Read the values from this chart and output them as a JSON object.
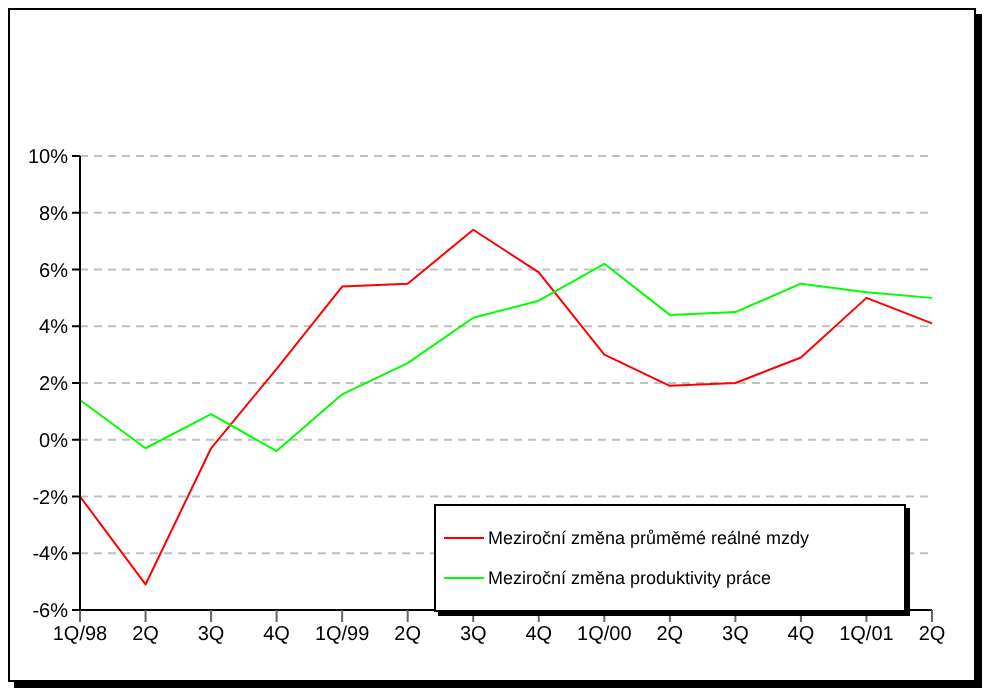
{
  "chart_data": {
    "type": "line",
    "categories": [
      "1Q/98",
      "2Q",
      "3Q",
      "4Q",
      "1Q/99",
      "2Q",
      "3Q",
      "4Q",
      "1Q/00",
      "2Q",
      "3Q",
      "4Q",
      "1Q/01",
      "2Q"
    ],
    "series": [
      {
        "name": "Meziroční změna průměmé reálné mzdy",
        "color": "#ff0000",
        "values": [
          -2.0,
          -5.1,
          -0.3,
          2.5,
          5.4,
          5.5,
          7.4,
          5.9,
          3.0,
          1.9,
          2.0,
          2.9,
          5.0,
          4.1
        ]
      },
      {
        "name": "Meziroční změna produktivity práce",
        "color": "#00ff00",
        "values": [
          1.4,
          -0.3,
          0.9,
          -0.4,
          1.6,
          2.7,
          4.3,
          4.9,
          6.2,
          4.4,
          4.5,
          5.5,
          5.2,
          5.0
        ]
      }
    ],
    "ylim": [
      -6,
      10
    ],
    "yticks": [
      {
        "value": -6,
        "label": "-6%"
      },
      {
        "value": -4,
        "label": "-4%"
      },
      {
        "value": -2,
        "label": "-2%"
      },
      {
        "value": 0,
        "label": "0%"
      },
      {
        "value": 2,
        "label": "2%"
      },
      {
        "value": 4,
        "label": "4%"
      },
      {
        "value": 6,
        "label": "6%"
      },
      {
        "value": 8,
        "label": "8%"
      },
      {
        "value": 10,
        "label": "10%"
      }
    ],
    "grid": "y",
    "legend": "bottom right",
    "marker": "none",
    "line_style": "solid"
  }
}
